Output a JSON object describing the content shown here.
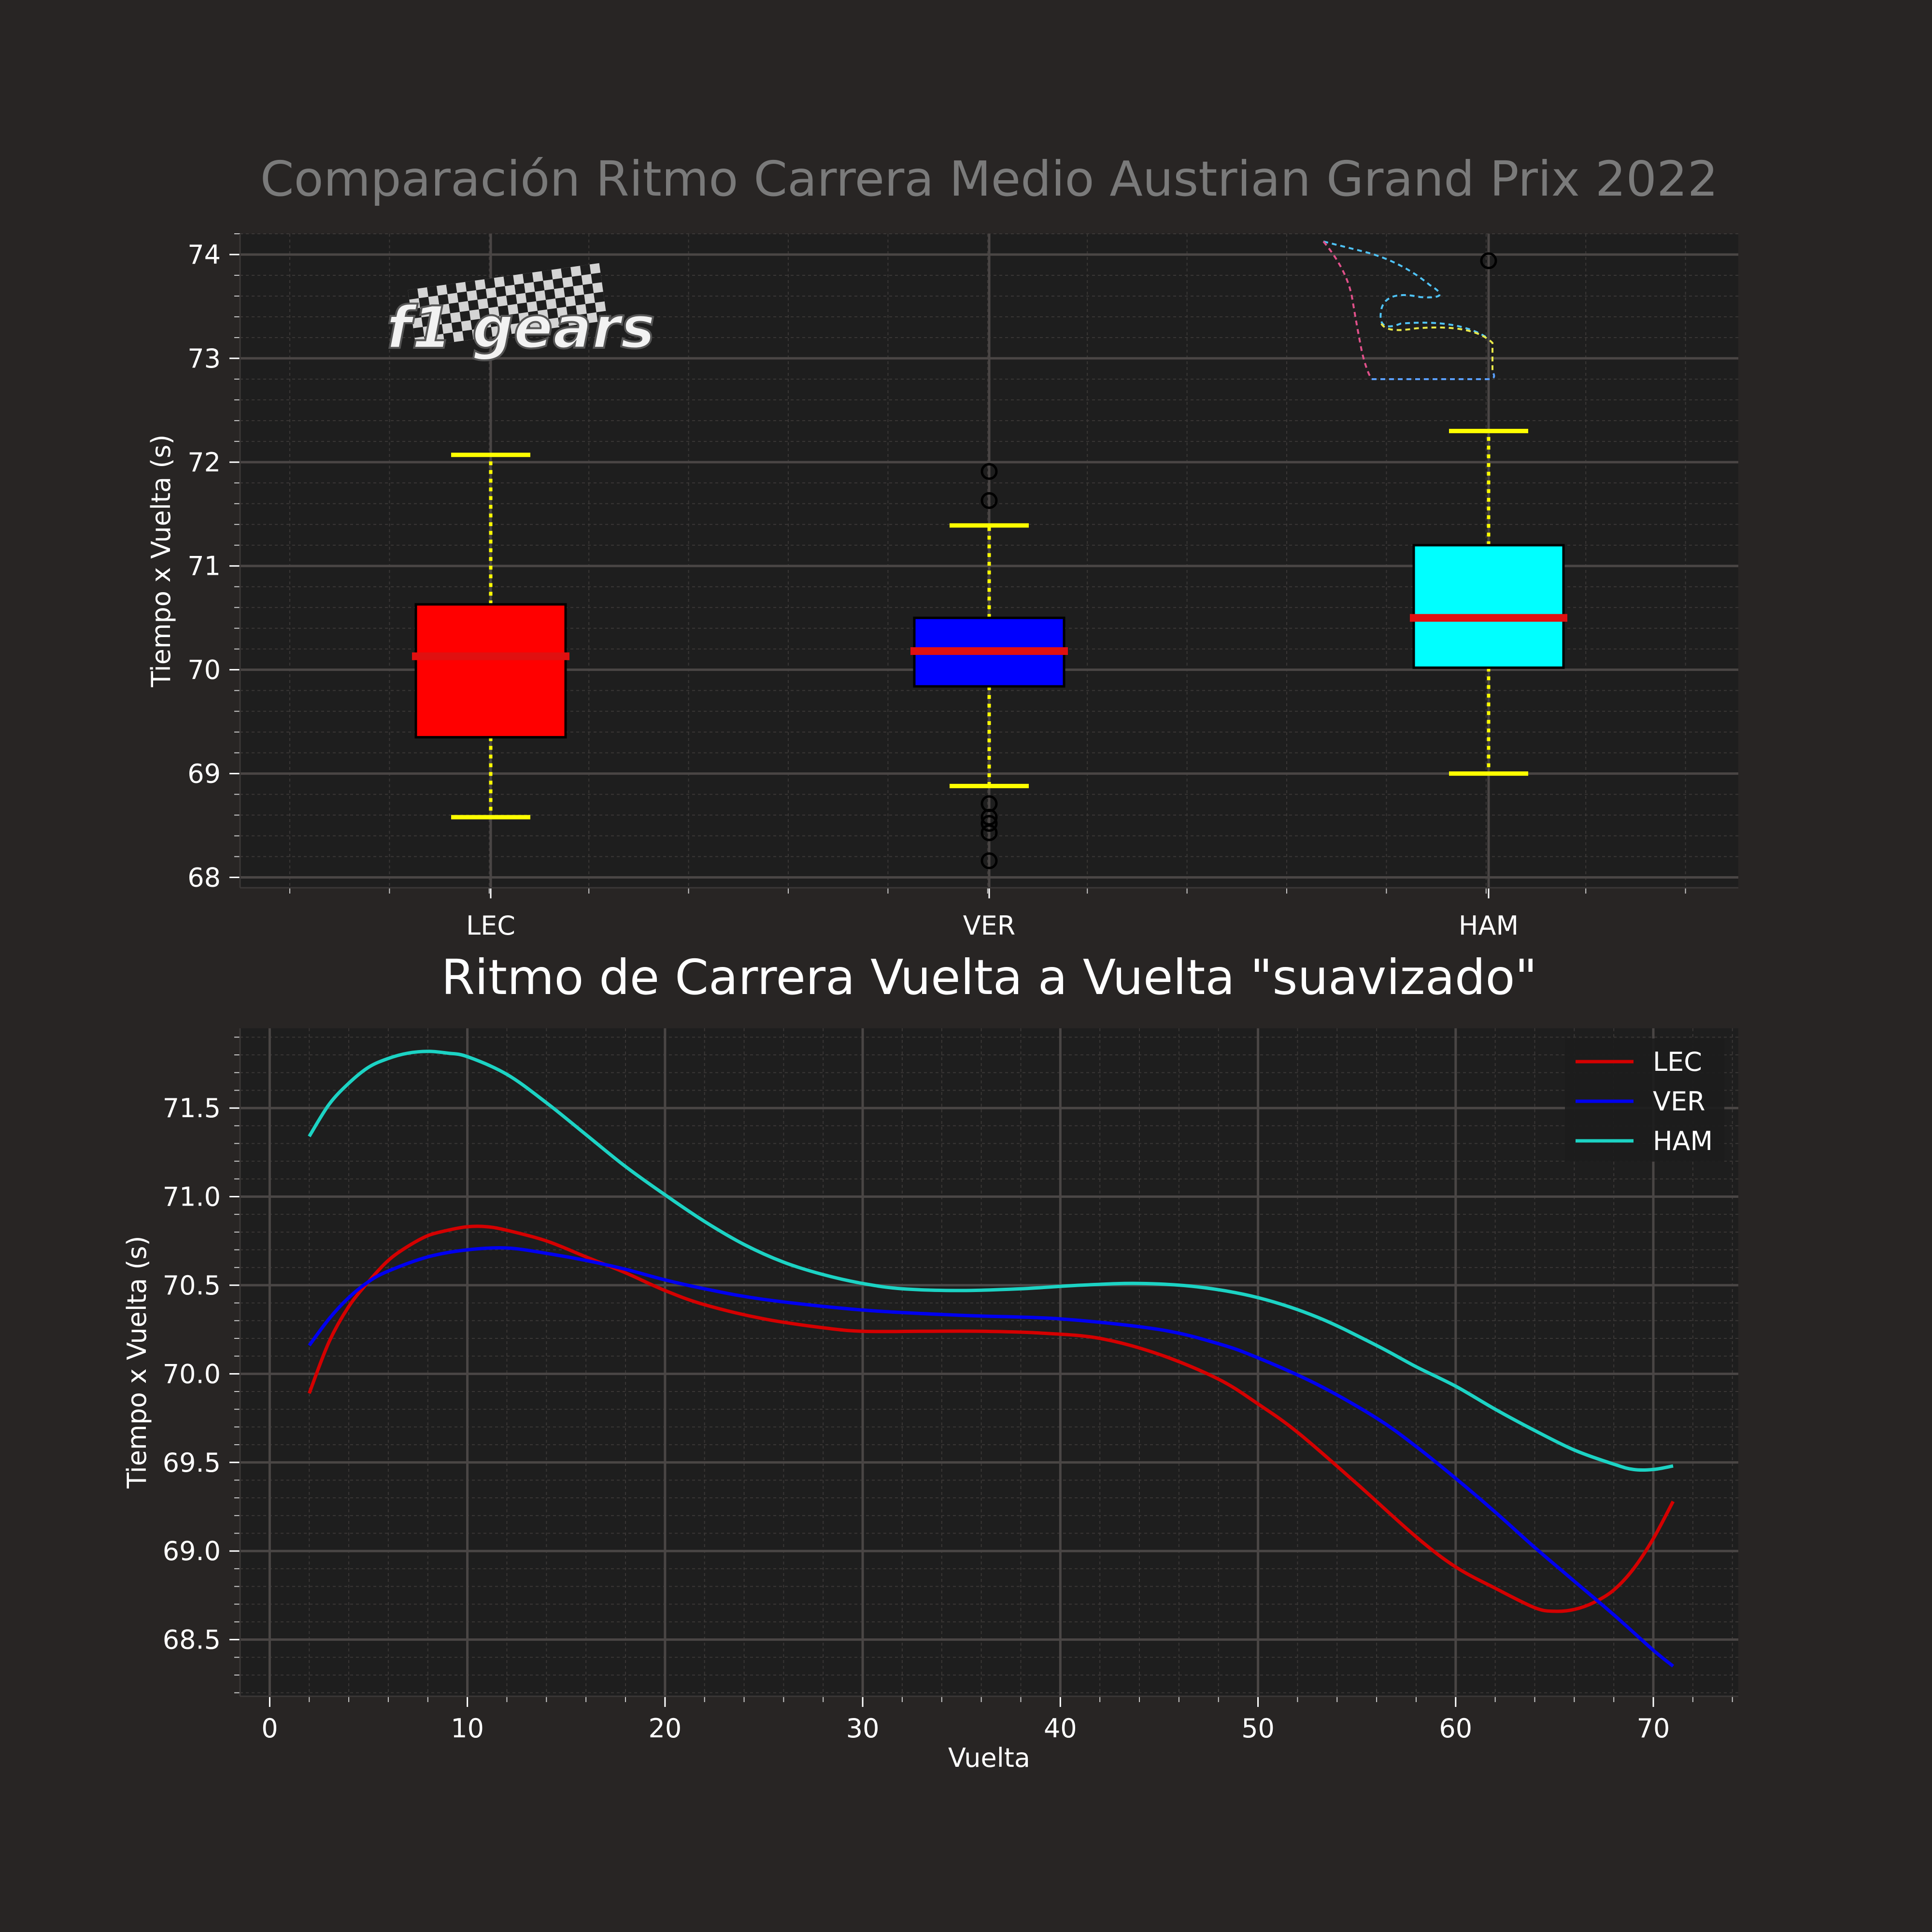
{
  "colors": {
    "figure_bg": "#282524",
    "axes_bg": "#1e1e1e",
    "text": "#ffffff",
    "title1": "#7a7a7a",
    "grid_major": "#4a4645",
    "grid_minor": "#3a3736",
    "whisker": "#ffff00",
    "median": "#e01010",
    "flier": "#000000"
  },
  "logo": {
    "text": "f1 gears"
  },
  "chart_data": [
    {
      "type": "box",
      "title": "Comparación Ritmo Carrera Medio Austrian Grand Prix 2022",
      "xlabel": "",
      "ylabel": "Tiempo x Vuelta (s)",
      "ylim": [
        67.9,
        74.2
      ],
      "yticks": [
        "68",
        "69",
        "70",
        "71",
        "72",
        "73",
        "74"
      ],
      "ytick_values": [
        68,
        69,
        70,
        71,
        72,
        73,
        74
      ],
      "grid": true,
      "categories": [
        "LEC",
        "VER",
        "HAM"
      ],
      "boxes": [
        {
          "name": "LEC",
          "color": "#ff0000",
          "whisker_low": 68.58,
          "q1": 69.35,
          "median": 70.13,
          "q3": 70.63,
          "whisker_high": 72.07,
          "fliers": []
        },
        {
          "name": "VER",
          "color": "#0000ff",
          "whisker_low": 68.88,
          "q1": 69.84,
          "median": 70.18,
          "q3": 70.5,
          "whisker_high": 71.39,
          "fliers": [
            71.91,
            71.63,
            68.71,
            68.58,
            68.52,
            68.43,
            68.16
          ]
        },
        {
          "name": "HAM",
          "color": "#00ffff",
          "whisker_low": 69.0,
          "q1": 70.02,
          "median": 70.5,
          "q3": 71.2,
          "whisker_high": 72.3,
          "fliers": [
            73.94
          ]
        }
      ]
    },
    {
      "type": "line",
      "title": "Ritmo de Carrera Vuelta a Vuelta \"suavizado\"",
      "xlabel": "Vuelta",
      "ylabel": "Tiempo x Vuelta (s)",
      "xlim": [
        -1.5,
        74.3
      ],
      "ylim": [
        68.18,
        71.95
      ],
      "xticks": [
        "0",
        "10",
        "20",
        "30",
        "40",
        "50",
        "60",
        "70"
      ],
      "xtick_values": [
        0,
        10,
        20,
        30,
        40,
        50,
        60,
        70
      ],
      "yticks": [
        "68.5",
        "69.0",
        "69.5",
        "70.0",
        "70.5",
        "71.0",
        "71.5"
      ],
      "ytick_values": [
        68.5,
        69.0,
        69.5,
        70.0,
        70.5,
        71.0,
        71.5
      ],
      "grid": true,
      "legend_position": "top-right",
      "series": [
        {
          "name": "LEC",
          "color": "#d40000",
          "x": [
            2,
            3,
            4,
            5,
            6,
            7,
            8,
            9,
            10,
            11,
            12,
            14,
            16,
            18,
            20,
            22,
            25,
            28,
            30,
            33,
            36,
            39,
            42,
            45,
            48,
            50,
            52,
            55,
            58,
            60,
            62,
            64,
            65,
            66,
            67,
            68,
            69,
            70,
            71
          ],
          "y": [
            69.89,
            70.18,
            70.38,
            70.52,
            70.64,
            70.72,
            70.78,
            70.81,
            70.83,
            70.83,
            70.81,
            70.75,
            70.66,
            70.57,
            70.47,
            70.39,
            70.31,
            70.26,
            70.24,
            70.24,
            70.24,
            70.23,
            70.2,
            70.11,
            69.97,
            69.83,
            69.67,
            69.38,
            69.08,
            68.91,
            68.79,
            68.68,
            68.66,
            68.67,
            68.71,
            68.78,
            68.9,
            69.07,
            69.28
          ]
        },
        {
          "name": "VER",
          "color": "#0000f0",
          "x": [
            2,
            3,
            4,
            5,
            6,
            8,
            10,
            12,
            14,
            16,
            18,
            20,
            22,
            25,
            30,
            35,
            40,
            45,
            48,
            50,
            53,
            56,
            58,
            60,
            62,
            64,
            66,
            68,
            70,
            71
          ],
          "y": [
            70.16,
            70.31,
            70.43,
            70.52,
            70.58,
            70.66,
            70.7,
            70.71,
            70.68,
            70.64,
            70.59,
            70.53,
            70.48,
            70.42,
            70.36,
            70.33,
            70.31,
            70.25,
            70.17,
            70.09,
            69.94,
            69.75,
            69.59,
            69.41,
            69.22,
            69.02,
            68.83,
            68.64,
            68.44,
            68.35
          ]
        },
        {
          "name": "HAM",
          "color": "#1cd3c4",
          "x": [
            2,
            3,
            4,
            5,
            6,
            7,
            8,
            9,
            10,
            12,
            14,
            16,
            18,
            20,
            22,
            24,
            26,
            28,
            30,
            32,
            35,
            38,
            41,
            44,
            47,
            50,
            53,
            56,
            58,
            60,
            62,
            64,
            66,
            68,
            69,
            70,
            71
          ],
          "y": [
            71.34,
            71.52,
            71.64,
            71.73,
            71.78,
            71.81,
            71.82,
            71.81,
            71.79,
            71.69,
            71.53,
            71.35,
            71.17,
            71.01,
            70.86,
            70.73,
            70.63,
            70.56,
            70.51,
            70.48,
            70.47,
            70.48,
            70.5,
            70.51,
            70.49,
            70.43,
            70.32,
            70.16,
            70.04,
            69.93,
            69.8,
            69.68,
            69.57,
            69.49,
            69.46,
            69.46,
            69.48
          ]
        }
      ]
    }
  ]
}
